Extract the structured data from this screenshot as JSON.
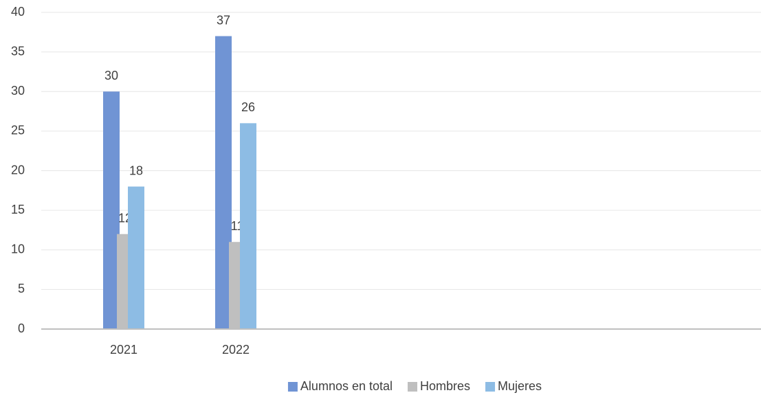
{
  "chart_data": {
    "type": "bar",
    "categories": [
      "2021",
      "2022"
    ],
    "series": [
      {
        "name": "Alumnos en total",
        "color": "#7094d4",
        "values": [
          30,
          37
        ]
      },
      {
        "name": "Hombres",
        "color": "#bfbfbf",
        "values": [
          12,
          11
        ]
      },
      {
        "name": "Mujeres",
        "color": "#8dbce4",
        "values": [
          18,
          26
        ]
      }
    ],
    "ylim": [
      0,
      40
    ],
    "yticks": [
      0,
      5,
      10,
      15,
      20,
      25,
      30,
      35,
      40
    ],
    "grid": true,
    "legend": "bottom"
  }
}
